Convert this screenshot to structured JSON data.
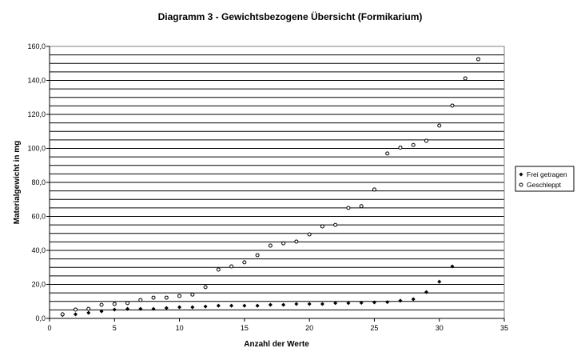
{
  "chart_data": {
    "type": "scatter",
    "title": "Diagramm 3 - Gewichtsbezogene Übersicht (Formikarium)",
    "xlabel": "Anzahl der Werte",
    "ylabel": "Materialgewicht in mg",
    "xlim": [
      0,
      35
    ],
    "ylim": [
      0,
      160
    ],
    "x_ticks": [
      "0",
      "5",
      "10",
      "15",
      "20",
      "25",
      "30",
      "35"
    ],
    "y_ticks": [
      "0,0",
      "20,0",
      "40,0",
      "60,0",
      "80,0",
      "100,0",
      "120,0",
      "140,0",
      "160,0"
    ],
    "grid": "horizontal, every 5",
    "legend_position": "right",
    "series": [
      {
        "name": "Frei getragen",
        "marker": "filled-diamond",
        "color": "#000000",
        "x": [
          1,
          2,
          3,
          4,
          5,
          6,
          7,
          8,
          9,
          10,
          11,
          12,
          13,
          14,
          15,
          16,
          17,
          18,
          19,
          20,
          21,
          22,
          23,
          24,
          25,
          26,
          27,
          28,
          29,
          30,
          31
        ],
        "y": [
          2.0,
          2.4,
          3.3,
          4.2,
          5.2,
          5.6,
          5.6,
          5.6,
          6.1,
          6.6,
          6.6,
          7.0,
          7.5,
          7.5,
          7.5,
          7.5,
          8.0,
          8.0,
          8.5,
          8.5,
          8.5,
          9.0,
          9.0,
          9.2,
          9.4,
          9.6,
          10.4,
          11.3,
          15.5,
          21.6,
          30.6
        ]
      },
      {
        "name": "Geschleppt",
        "marker": "open-circle",
        "color": "#000000",
        "x": [
          1,
          2,
          3,
          4,
          5,
          6,
          7,
          8,
          9,
          10,
          11,
          12,
          13,
          14,
          15,
          16,
          17,
          18,
          19,
          20,
          21,
          22,
          23,
          24,
          25,
          26,
          27,
          28,
          29,
          30,
          31,
          32,
          33
        ],
        "y": [
          2.4,
          5.2,
          5.6,
          8.0,
          8.5,
          9.0,
          10.8,
          12.2,
          12.2,
          13.2,
          14.0,
          18.4,
          28.7,
          30.6,
          33.0,
          37.2,
          42.8,
          44.2,
          45.2,
          49.4,
          54.1,
          55.0,
          65.0,
          66.0,
          75.8,
          97.0,
          100.5,
          102.0,
          104.5,
          113.4,
          125.2,
          141.2,
          152.5
        ]
      }
    ]
  }
}
